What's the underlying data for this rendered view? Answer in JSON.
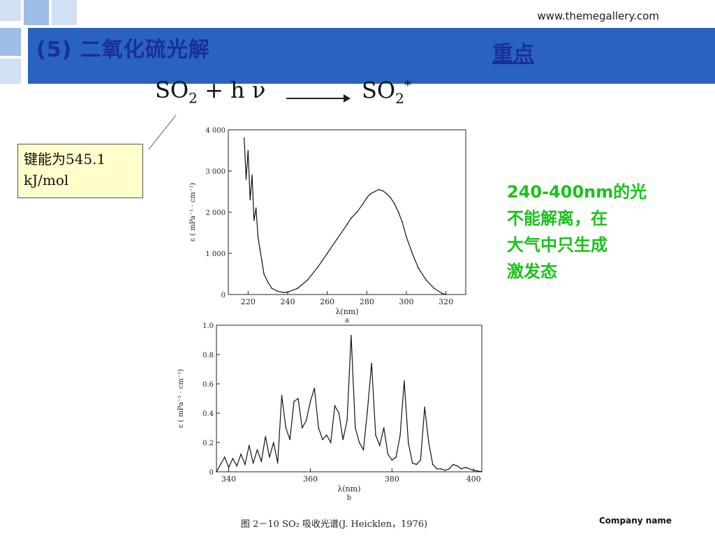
{
  "site_url": "www.themegallery.com",
  "slide_title": "(5) 二氧化硫光解",
  "key_point": "重点",
  "equation": {
    "reactant": "SO",
    "reactant_sub": "2",
    "plus": "+",
    "photon": "h ν",
    "product": "SO",
    "product_sub": "2",
    "product_sup": "*"
  },
  "callout": {
    "line1": "键能为545.1",
    "line2": "kJ/mol"
  },
  "note_lines": [
    "240-400nm的光",
    "不能解离，在",
    "大气中只生成",
    "激发态"
  ],
  "figure_caption": "图 2－10   SO₂ 吸收光谱(J. Heicklen，1976)",
  "footer_company": "Company name",
  "colors": {
    "bar": "#2a62c0",
    "title": "#1a2f9a",
    "note": "#19c219",
    "callout_bg": "#ffffcc"
  },
  "chart_data": [
    {
      "type": "line",
      "panel_label": "a",
      "xlabel": "λ(nm)",
      "ylabel": "ε ( mPa⁻¹ · cm⁻¹)",
      "xlim": [
        210,
        330
      ],
      "ylim": [
        0,
        4000
      ],
      "xticks": [
        220,
        240,
        260,
        280,
        300,
        320
      ],
      "yticks": [
        0,
        1000,
        2000,
        3000,
        4000
      ],
      "ytick_labels": [
        "0",
        "1 000",
        "2 000",
        "3 000",
        "4 000"
      ],
      "x": [
        218,
        219,
        220,
        221,
        222,
        223,
        224,
        225,
        226,
        227,
        228,
        230,
        232,
        235,
        238,
        240,
        245,
        250,
        255,
        260,
        265,
        270,
        272,
        275,
        278,
        280,
        282,
        284,
        286,
        288,
        290,
        292,
        294,
        296,
        298,
        300,
        303,
        306,
        310,
        314,
        318,
        320
      ],
      "y": [
        3800,
        2800,
        3500,
        2300,
        2900,
        1800,
        2100,
        1400,
        1100,
        800,
        500,
        300,
        150,
        80,
        50,
        60,
        150,
        350,
        650,
        1000,
        1350,
        1700,
        1850,
        2000,
        2200,
        2350,
        2450,
        2500,
        2550,
        2520,
        2450,
        2350,
        2200,
        2000,
        1750,
        1400,
        1000,
        650,
        350,
        150,
        30,
        0
      ]
    },
    {
      "type": "line",
      "panel_label": "b",
      "xlabel": "λ(nm)",
      "ylabel": "ε ( mPa⁻¹ · cm⁻¹)",
      "xlim": [
        337,
        402
      ],
      "ylim": [
        0,
        1.0
      ],
      "xticks": [
        340,
        360,
        380,
        400
      ],
      "yticks": [
        0,
        0.2,
        0.4,
        0.6,
        0.8,
        1.0
      ],
      "ytick_labels": [
        "0",
        "0.2",
        "0.4",
        "0.6",
        "0.8",
        "1.0"
      ],
      "x": [
        337,
        339,
        340,
        341,
        342,
        343,
        344,
        345,
        346,
        347,
        348,
        349,
        350,
        351,
        352,
        353,
        354,
        355,
        356,
        357,
        358,
        359,
        360,
        361,
        362,
        363,
        364,
        365,
        366,
        367,
        368,
        369,
        370,
        371,
        372,
        373,
        374,
        375,
        376,
        377,
        378,
        379,
        380,
        381,
        382,
        383,
        384,
        385,
        386,
        387,
        388,
        389,
        390,
        391,
        392,
        393,
        394,
        395,
        396,
        397,
        398,
        400,
        402
      ],
      "y": [
        0.0,
        0.1,
        0.03,
        0.09,
        0.04,
        0.12,
        0.05,
        0.18,
        0.06,
        0.15,
        0.07,
        0.24,
        0.1,
        0.2,
        0.06,
        0.52,
        0.3,
        0.22,
        0.48,
        0.5,
        0.3,
        0.35,
        0.48,
        0.57,
        0.3,
        0.22,
        0.25,
        0.2,
        0.45,
        0.4,
        0.22,
        0.35,
        0.93,
        0.3,
        0.2,
        0.15,
        0.42,
        0.74,
        0.25,
        0.18,
        0.3,
        0.12,
        0.08,
        0.1,
        0.25,
        0.62,
        0.2,
        0.06,
        0.05,
        0.08,
        0.44,
        0.2,
        0.05,
        0.02,
        0.02,
        0.01,
        0.02,
        0.05,
        0.04,
        0.02,
        0.03,
        0.01,
        0.0
      ]
    }
  ]
}
